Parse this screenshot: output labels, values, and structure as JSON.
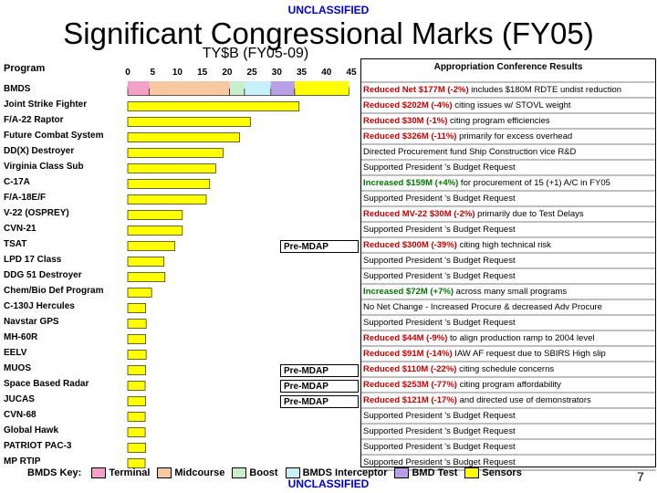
{
  "classification_top": "UNCLASSIFIED",
  "classification_bottom": "UNCLASSIFIED",
  "title": "Significant Congressional Marks (FY05)",
  "subtitle": "TY$B (FY05-09)",
  "program_header": "Program",
  "results_header": "Appropriation Conference Results",
  "page_number": "7",
  "legend": {
    "label": "BMDS Key:",
    "items": [
      {
        "name": "Terminal",
        "color": "#f5a0c8"
      },
      {
        "name": "Midcourse",
        "color": "#f8c8a0"
      },
      {
        "name": "Boost",
        "color": "#c8f0c8"
      },
      {
        "name": "BMDS Interceptor",
        "color": "#c8f0f8"
      },
      {
        "name": "BMD Test",
        "color": "#b8a0e8"
      },
      {
        "name": "Sensors",
        "color": "#ffff00"
      }
    ]
  },
  "colors": {
    "bar": "#ffff00",
    "bar_border": "#000000",
    "reduced": "#cc0000",
    "increased": "#007700"
  },
  "pre_mdap_label": "Pre-MDAP",
  "chart_data": {
    "type": "bar",
    "orientation": "horizontal",
    "xlim": [
      0,
      45
    ],
    "ticks": [
      0,
      5,
      10,
      15,
      20,
      25,
      30,
      35,
      40,
      45
    ],
    "bmds_segments": [
      {
        "name": "Terminal",
        "value": 4.3
      },
      {
        "name": "Midcourse",
        "value": 16.2
      },
      {
        "name": "Boost",
        "value": 3.0
      },
      {
        "name": "BMDS Interceptor",
        "value": 5.3
      },
      {
        "name": "BMD Test",
        "value": 4.8
      },
      {
        "name": "Sensors",
        "value": 10.9
      }
    ],
    "categories": [
      "BMDS",
      "Joint Strike Fighter",
      "F/A-22 Raptor",
      "Future Combat System",
      "DD(X) Destroyer",
      "Virginia Class Sub",
      "C-17A",
      "F/A-18E/F",
      "V-22 (OSPREY)",
      "CVN-21",
      "TSAT",
      "LPD 17 Class",
      "DDG 51 Destroyer",
      "Chem/Bio Def Program",
      "C-130J Hercules",
      "Navstar GPS",
      "MH-60R",
      "EELV",
      "MUOS",
      "Space Based Radar",
      "JUCAS",
      "CVN-68",
      "Global Hawk",
      "PATRIOT PAC-3",
      "MP RTIP"
    ],
    "values": [
      44.5,
      34.5,
      24.7,
      22.5,
      19.2,
      17.7,
      16.5,
      15.8,
      11.0,
      11.0,
      9.5,
      7.3,
      7.5,
      4.8,
      3.6,
      3.7,
      3.6,
      3.7,
      3.6,
      3.5,
      3.6,
      3.5,
      3.5,
      3.6,
      3.5
    ],
    "pre_mdap": [
      "TSAT",
      "MUOS",
      "Space Based Radar",
      "JUCAS"
    ]
  },
  "results": [
    {
      "highlight": "Reduced Net $177M (-2%)",
      "type": "reduced",
      "rest": " includes $180M RDTE undist reduction"
    },
    {
      "highlight": "Reduced $202M (-4%)",
      "type": "reduced",
      "rest": " citing issues w/ STOVL weight"
    },
    {
      "highlight": "Reduced $30M (-1%)",
      "type": "reduced",
      "rest": " citing program efficiencies"
    },
    {
      "highlight": "Reduced $326M (-11%)",
      "type": "reduced",
      "rest": " primarily for excess overhead"
    },
    {
      "highlight": "",
      "type": "none",
      "rest": "Directed Procurement fund Ship Construction vice R&D"
    },
    {
      "highlight": "",
      "type": "none",
      "rest": "Supported President 's Budget Request"
    },
    {
      "highlight": "Increased $159M (+4%)",
      "type": "increased",
      "rest": " for procurement of 15 (+1) A/C in FY05"
    },
    {
      "highlight": "",
      "type": "none",
      "rest": "Supported President 's Budget Request"
    },
    {
      "highlight": "Reduced MV-22 $30M (-2%)",
      "type": "reduced",
      "rest": " primarily due to Test Delays"
    },
    {
      "highlight": "",
      "type": "none",
      "rest": "Supported President 's Budget Request"
    },
    {
      "highlight": "Reduced $300M (-39%)",
      "type": "reduced",
      "rest": " citing high technical risk"
    },
    {
      "highlight": "",
      "type": "none",
      "rest": "Supported President 's Budget Request"
    },
    {
      "highlight": "",
      "type": "none",
      "rest": "Supported President 's Budget Request"
    },
    {
      "highlight": "Increased $72M (+7%)",
      "type": "increased",
      "rest": " across many small programs"
    },
    {
      "highlight": "",
      "type": "none",
      "rest": "No Net Change - Increased Procure & decreased Adv Procure"
    },
    {
      "highlight": "",
      "type": "none",
      "rest": "Supported President 's Budget Request"
    },
    {
      "highlight": "Reduced $44M (-9%)",
      "type": "reduced",
      "rest": " to align production ramp to 2004 level"
    },
    {
      "highlight": "Reduced $91M (-14%)",
      "type": "reduced",
      "rest": " IAW AF request due to SBIRS High slip"
    },
    {
      "highlight": "Reduced $110M (-22%)",
      "type": "reduced",
      "rest": " citing schedule concerns"
    },
    {
      "highlight": "Reduced $253M (-77%)",
      "type": "reduced",
      "rest": " citing program affordability"
    },
    {
      "highlight": "Reduced $121M (-17%)",
      "type": "reduced",
      "rest": " and directed use of demonstrators"
    },
    {
      "highlight": "",
      "type": "none",
      "rest": "Supported President 's Budget Request"
    },
    {
      "highlight": "",
      "type": "none",
      "rest": "Supported President 's Budget Request"
    },
    {
      "highlight": "",
      "type": "none",
      "rest": "Supported President 's Budget Request"
    },
    {
      "highlight": "",
      "type": "none",
      "rest": "Supported President 's Budget Request"
    }
  ]
}
